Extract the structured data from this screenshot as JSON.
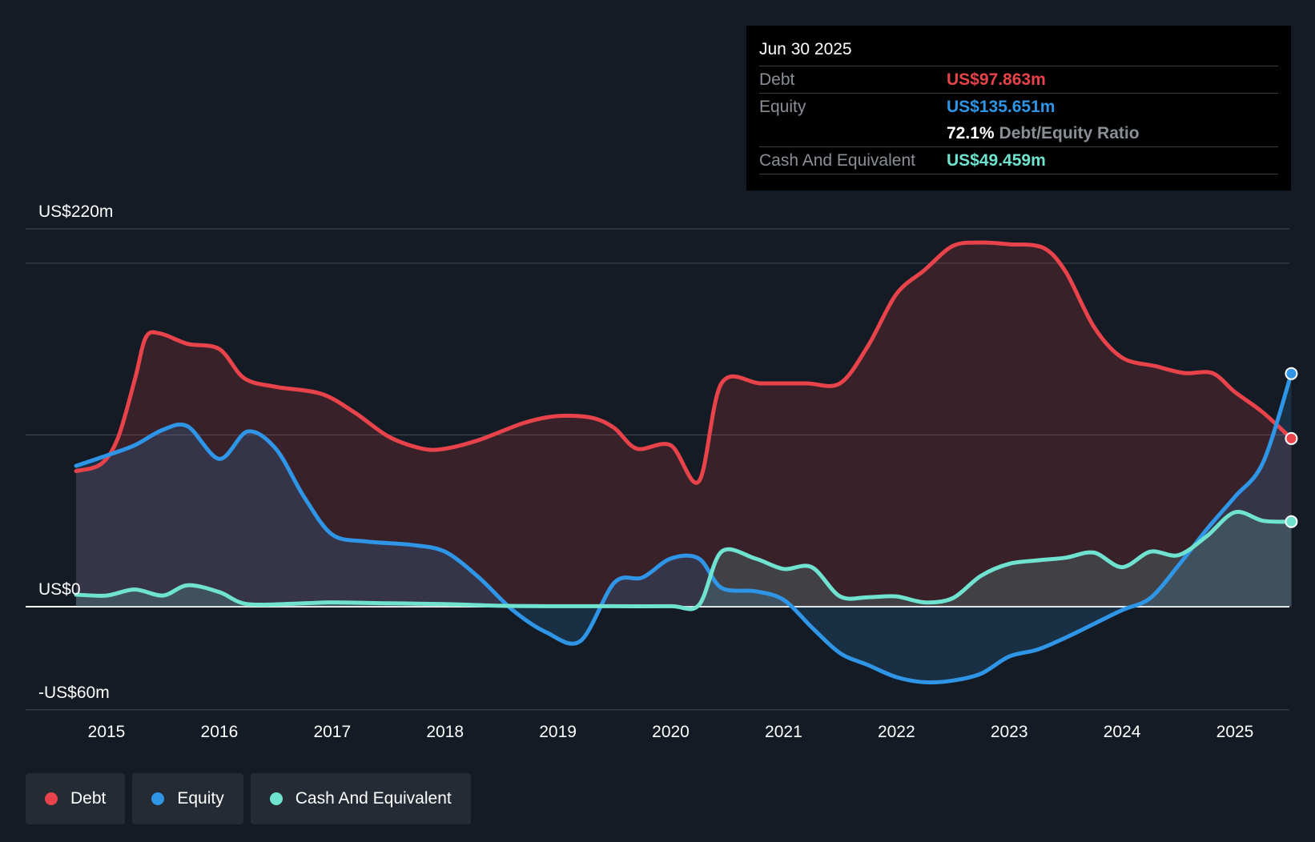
{
  "colors": {
    "debt": "#e8434a",
    "equity": "#2f95e6",
    "cash": "#6fe3cf",
    "background": "#151b24",
    "grid": "#3a414c"
  },
  "tooltip": {
    "date": "Jun 30 2025",
    "debt_label": "Debt",
    "debt_value": "US$97.863m",
    "equity_label": "Equity",
    "equity_value": "US$135.651m",
    "ratio_value": "72.1%",
    "ratio_label": "Debt/Equity Ratio",
    "cash_label": "Cash And Equivalent",
    "cash_value": "US$49.459m"
  },
  "legend": [
    {
      "label": "Debt",
      "color_key": "debt"
    },
    {
      "label": "Equity",
      "color_key": "equity"
    },
    {
      "label": "Cash And Equivalent",
      "color_key": "cash"
    }
  ],
  "chart_data": {
    "type": "area",
    "title": "",
    "xlabel": "",
    "ylabel": "",
    "y_range": [
      -60,
      220
    ],
    "y_axis_labels": [
      {
        "value": 220,
        "text": "US$220m"
      },
      {
        "value": 0,
        "text": "US$0"
      },
      {
        "value": -60,
        "text": "-US$60m"
      }
    ],
    "gridlines": [
      220,
      200,
      100,
      0,
      -60
    ],
    "x_range": [
      2014.7,
      2025.5
    ],
    "x_ticks": [
      2015,
      2016,
      2017,
      2018,
      2019,
      2020,
      2021,
      2022,
      2023,
      2024,
      2025
    ],
    "series": [
      {
        "name": "Debt",
        "color_key": "debt",
        "points": [
          [
            2014.73,
            79
          ],
          [
            2014.95,
            83
          ],
          [
            2015.1,
            98
          ],
          [
            2015.25,
            132
          ],
          [
            2015.35,
            157
          ],
          [
            2015.48,
            159
          ],
          [
            2015.72,
            153
          ],
          [
            2016.0,
            150
          ],
          [
            2016.22,
            133
          ],
          [
            2016.5,
            128
          ],
          [
            2016.9,
            124
          ],
          [
            2017.2,
            113
          ],
          [
            2017.5,
            99
          ],
          [
            2017.8,
            92
          ],
          [
            2018.0,
            92
          ],
          [
            2018.3,
            97
          ],
          [
            2018.7,
            107
          ],
          [
            2019.0,
            111
          ],
          [
            2019.3,
            110
          ],
          [
            2019.5,
            104
          ],
          [
            2019.7,
            92
          ],
          [
            2020.0,
            94
          ],
          [
            2020.25,
            73
          ],
          [
            2020.45,
            130
          ],
          [
            2020.8,
            130
          ],
          [
            2021.2,
            130
          ],
          [
            2021.5,
            130
          ],
          [
            2021.75,
            152
          ],
          [
            2022.0,
            182
          ],
          [
            2022.25,
            196
          ],
          [
            2022.5,
            210
          ],
          [
            2022.75,
            212
          ],
          [
            2023.0,
            211
          ],
          [
            2023.3,
            209
          ],
          [
            2023.5,
            195
          ],
          [
            2023.75,
            163
          ],
          [
            2024.0,
            145
          ],
          [
            2024.3,
            140
          ],
          [
            2024.55,
            136
          ],
          [
            2024.8,
            136
          ],
          [
            2025.0,
            125
          ],
          [
            2025.25,
            113
          ],
          [
            2025.5,
            97.9
          ]
        ]
      },
      {
        "name": "Equity",
        "color_key": "equity",
        "points": [
          [
            2014.73,
            82
          ],
          [
            2015.0,
            88
          ],
          [
            2015.25,
            94
          ],
          [
            2015.5,
            103
          ],
          [
            2015.72,
            105
          ],
          [
            2016.0,
            86
          ],
          [
            2016.25,
            102
          ],
          [
            2016.5,
            92
          ],
          [
            2016.75,
            64
          ],
          [
            2017.0,
            42
          ],
          [
            2017.3,
            38
          ],
          [
            2017.7,
            36
          ],
          [
            2018.0,
            32
          ],
          [
            2018.3,
            17
          ],
          [
            2018.6,
            -2
          ],
          [
            2018.9,
            -15
          ],
          [
            2019.2,
            -20
          ],
          [
            2019.5,
            14
          ],
          [
            2019.75,
            17
          ],
          [
            2020.0,
            28
          ],
          [
            2020.25,
            28
          ],
          [
            2020.45,
            11
          ],
          [
            2020.75,
            9
          ],
          [
            2021.0,
            4
          ],
          [
            2021.25,
            -12
          ],
          [
            2021.5,
            -27
          ],
          [
            2021.75,
            -34
          ],
          [
            2022.0,
            -41
          ],
          [
            2022.25,
            -44
          ],
          [
            2022.5,
            -43
          ],
          [
            2022.75,
            -39
          ],
          [
            2023.0,
            -29
          ],
          [
            2023.25,
            -25
          ],
          [
            2023.5,
            -18
          ],
          [
            2023.75,
            -10
          ],
          [
            2024.0,
            -2
          ],
          [
            2024.25,
            5
          ],
          [
            2024.5,
            24
          ],
          [
            2024.75,
            45
          ],
          [
            2025.0,
            64
          ],
          [
            2025.25,
            84
          ],
          [
            2025.5,
            135.7
          ]
        ]
      },
      {
        "name": "Cash And Equivalent",
        "color_key": "cash",
        "points": [
          [
            2014.73,
            7
          ],
          [
            2015.0,
            6.5
          ],
          [
            2015.25,
            10
          ],
          [
            2015.5,
            6.5
          ],
          [
            2015.72,
            12.5
          ],
          [
            2016.0,
            8.5
          ],
          [
            2016.25,
            1.5
          ],
          [
            2016.75,
            2
          ],
          [
            2017.0,
            2.5
          ],
          [
            2017.5,
            2
          ],
          [
            2018.0,
            1.5
          ],
          [
            2018.5,
            0.5
          ],
          [
            2019.0,
            0.3
          ],
          [
            2019.5,
            0.3
          ],
          [
            2020.0,
            0.3
          ],
          [
            2020.25,
            1
          ],
          [
            2020.45,
            32
          ],
          [
            2020.75,
            28
          ],
          [
            2021.0,
            22
          ],
          [
            2021.25,
            23
          ],
          [
            2021.5,
            6
          ],
          [
            2021.75,
            5.5
          ],
          [
            2022.0,
            6
          ],
          [
            2022.25,
            2.5
          ],
          [
            2022.5,
            5
          ],
          [
            2022.75,
            18
          ],
          [
            2023.0,
            25
          ],
          [
            2023.25,
            27
          ],
          [
            2023.5,
            28.5
          ],
          [
            2023.75,
            31.5
          ],
          [
            2024.0,
            23
          ],
          [
            2024.25,
            32
          ],
          [
            2024.5,
            30
          ],
          [
            2024.75,
            41
          ],
          [
            2025.0,
            55
          ],
          [
            2025.25,
            50
          ],
          [
            2025.5,
            49.5
          ]
        ]
      }
    ]
  }
}
